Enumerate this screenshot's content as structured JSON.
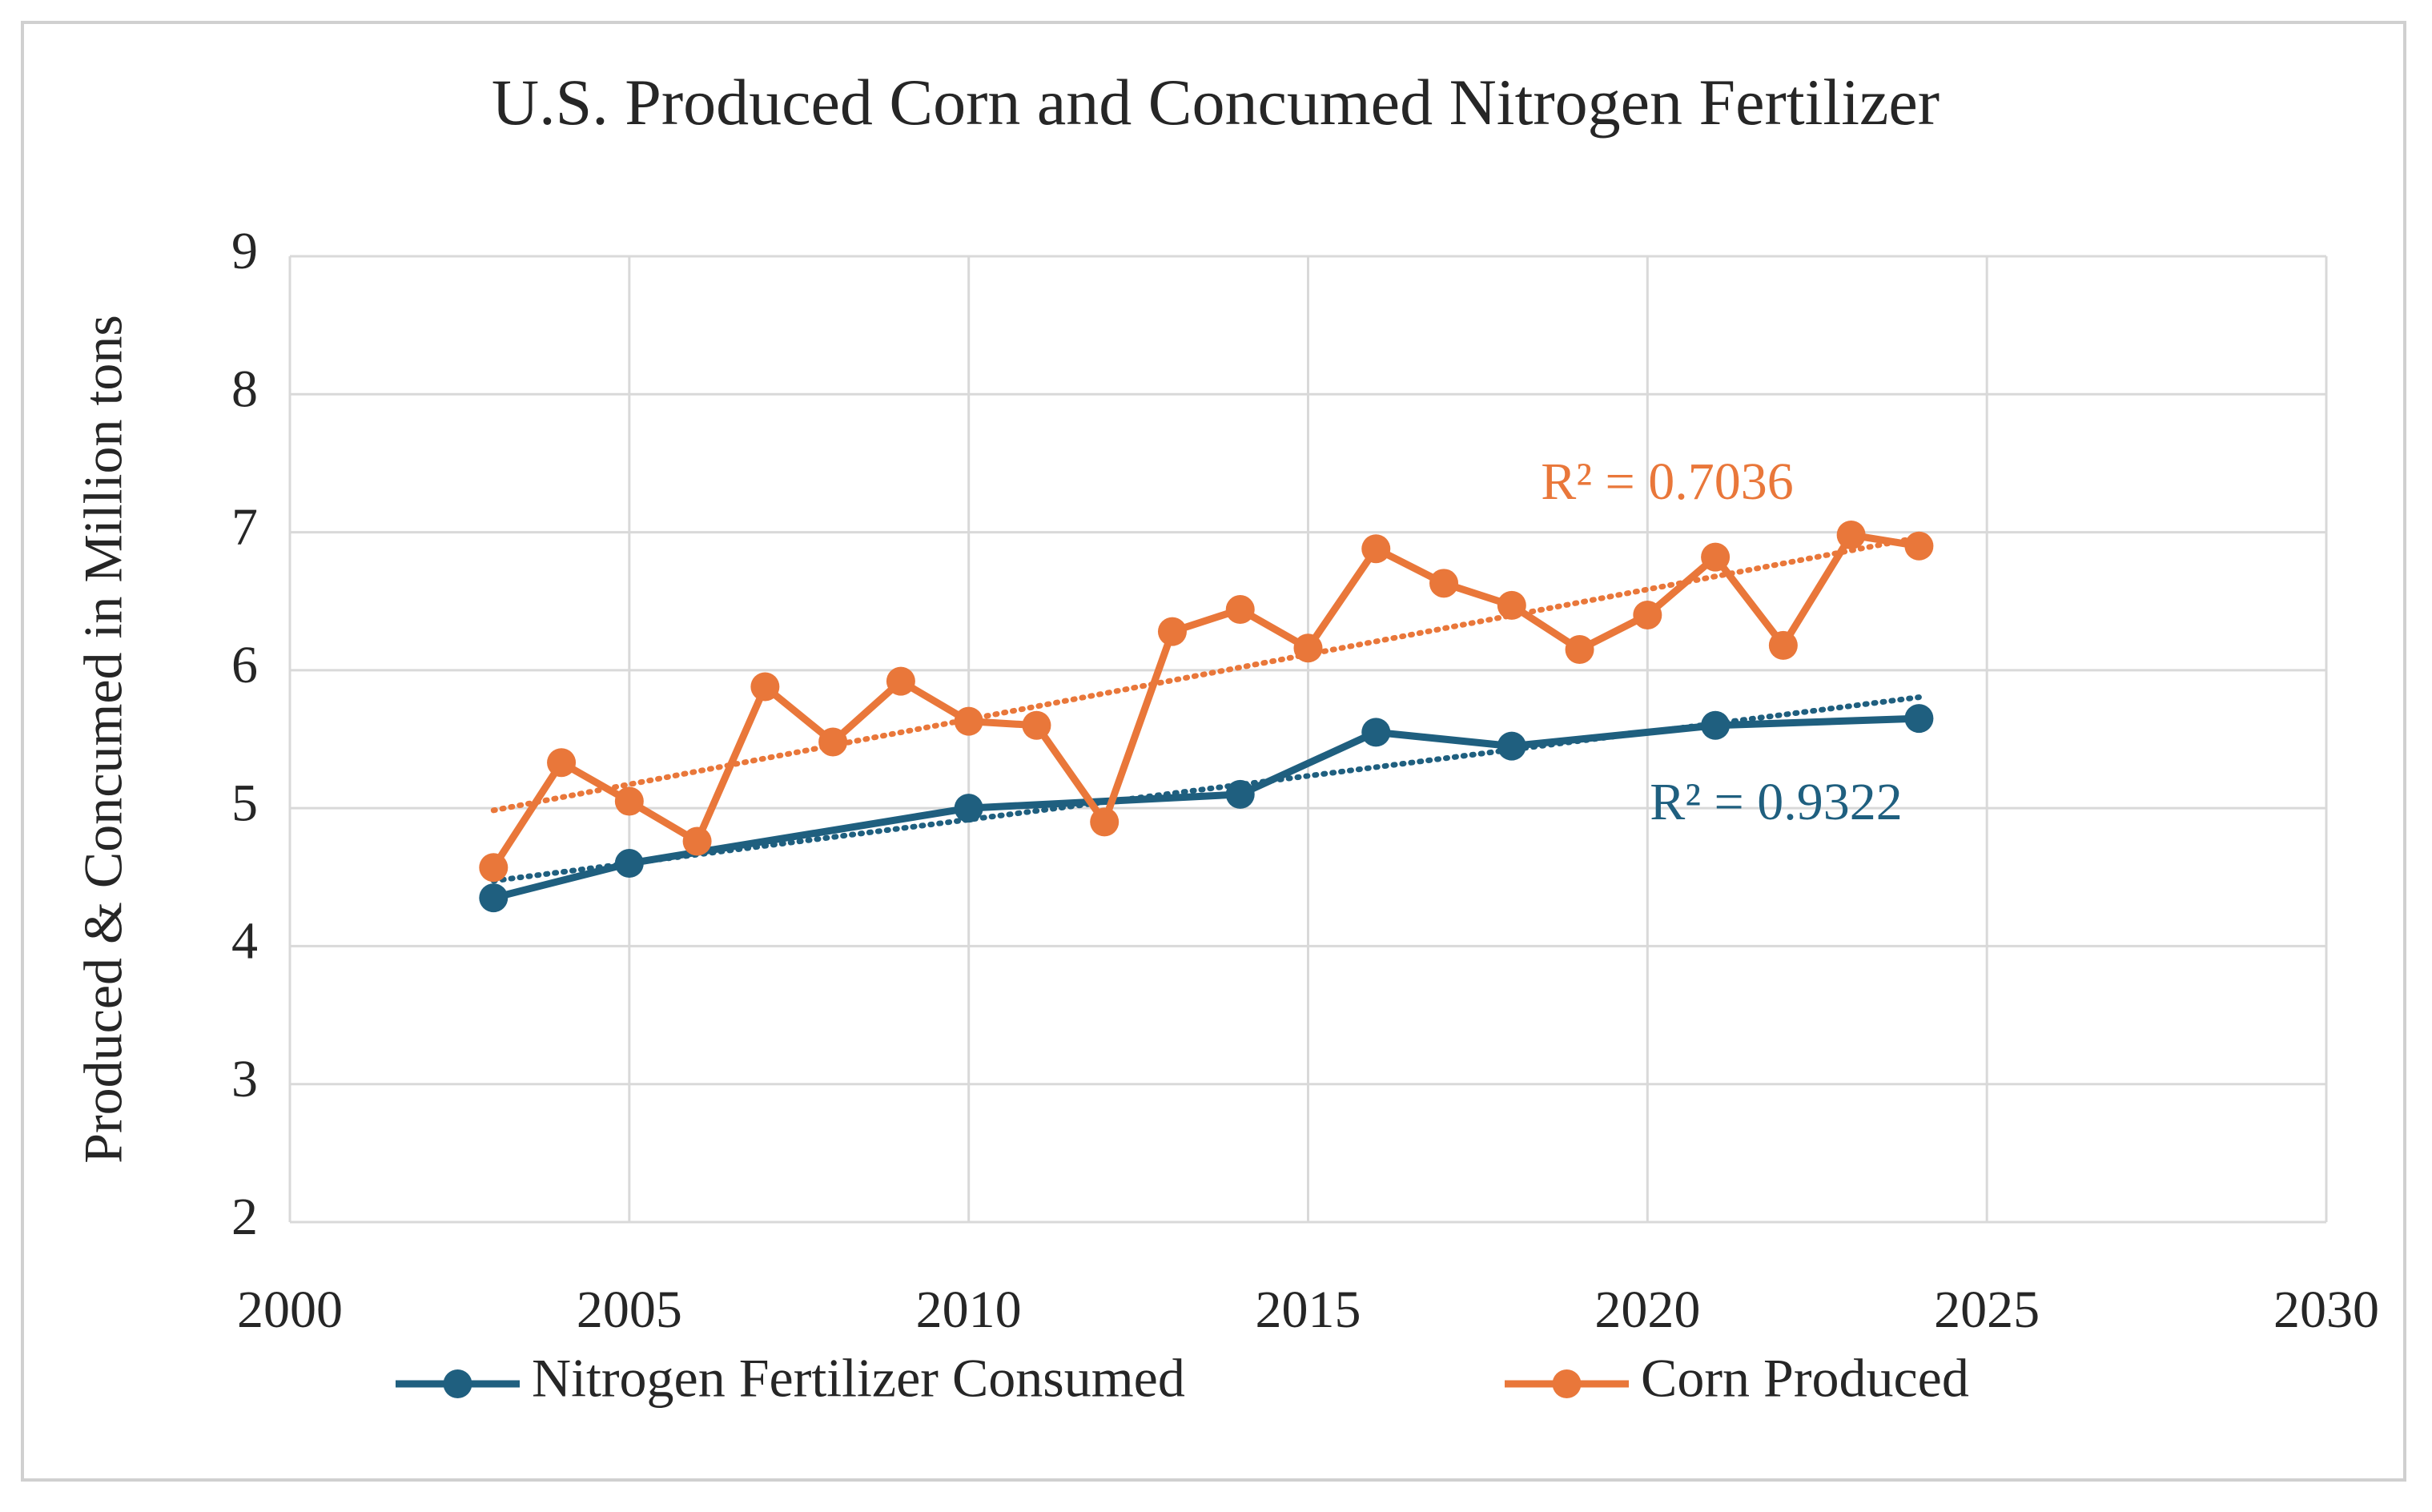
{
  "chart_data": {
    "type": "line",
    "title": "U.S. Produced Corn and Concumed Nitrogen Fertilizer",
    "y_label": "Produced & Concumed in Million tons",
    "xlim": [
      2000,
      2030
    ],
    "xticks": [
      2000,
      2005,
      2010,
      2015,
      2020,
      2025,
      2030
    ],
    "ylim": [
      2,
      9
    ],
    "yticks": [
      2,
      3,
      4,
      5,
      6,
      7,
      8,
      9
    ],
    "grid": true,
    "legend": "bottom",
    "trendline": "linear",
    "series": [
      {
        "name": "Nitrogen Fertilizer Consumed",
        "color": "#1f5f7f",
        "x": [
          2003,
          2005,
          2010,
          2014,
          2016,
          2018,
          2021,
          2024
        ],
        "values": [
          4.35,
          4.6,
          5.0,
          5.1,
          5.55,
          5.45,
          5.6,
          5.65
        ]
      },
      {
        "name": "Corn Produced",
        "color": "#e9773a",
        "x": [
          2003,
          2004,
          2005,
          2006,
          2007,
          2008,
          2009,
          2010,
          2011,
          2012,
          2013,
          2014,
          2015,
          2016,
          2017,
          2018,
          2019,
          2020,
          2021,
          2022,
          2023,
          2024
        ],
        "values": [
          4.57,
          5.33,
          5.05,
          4.76,
          5.88,
          5.48,
          5.92,
          5.63,
          5.6,
          4.9,
          6.28,
          6.44,
          6.16,
          6.88,
          6.63,
          6.47,
          6.15,
          6.4,
          6.82,
          6.18,
          6.98,
          6.9
        ]
      }
    ],
    "annotations": [
      {
        "text": "R² = 0.7036",
        "color": "#e9773a"
      },
      {
        "text": "R² = 0.9322",
        "color": "#1f5f7f"
      }
    ]
  }
}
